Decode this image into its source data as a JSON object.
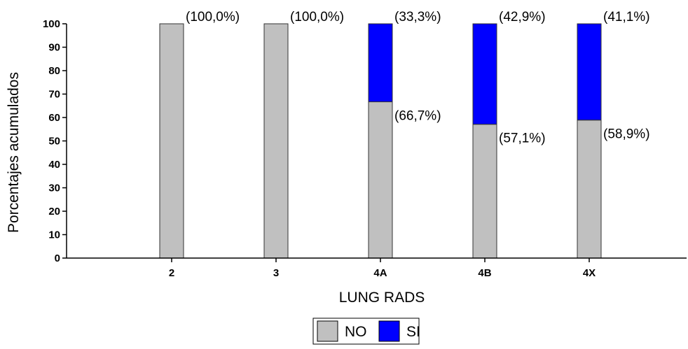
{
  "chart_data": {
    "type": "bar",
    "stacked": true,
    "xlabel": "LUNG RADS",
    "ylabel": "Porcentajes acumulados",
    "ylim": [
      0,
      100
    ],
    "yticks": [
      "0",
      "10",
      "20",
      "30",
      "40",
      "50",
      "60",
      "70",
      "80",
      "90",
      "100"
    ],
    "categories": [
      "2",
      "3",
      "4A",
      "4B",
      "4X"
    ],
    "series": [
      {
        "name": "NO",
        "color": "#c0c0c0",
        "values": [
          100.0,
          100.0,
          66.7,
          57.1,
          58.9
        ],
        "labels": [
          "(100,0%)",
          "(100,0%)",
          "(66,7%)",
          "(57,1%)",
          "(58,9%)"
        ]
      },
      {
        "name": "SI",
        "color": "#0000ff",
        "values": [
          0.0,
          0.0,
          33.3,
          42.9,
          41.1
        ],
        "labels": [
          "",
          "",
          "(33,3%)",
          "(42,9%)",
          "(41,1%)"
        ]
      }
    ],
    "legend": {
      "position": "bottom-center"
    },
    "grid": false
  }
}
